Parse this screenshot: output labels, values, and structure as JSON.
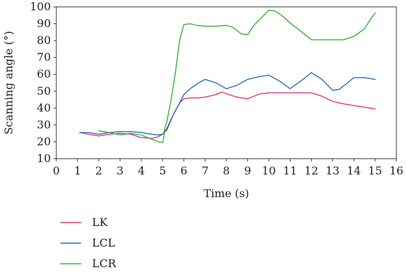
{
  "chart_data": {
    "type": "line",
    "title": "",
    "xlabel": "Time (s)",
    "ylabel": "Scanning angle (°)",
    "xlim": [
      0,
      16
    ],
    "ylim": [
      10,
      100
    ],
    "xticks": [
      0,
      1,
      2,
      3,
      4,
      5,
      6,
      7,
      8,
      9,
      10,
      11,
      12,
      13,
      14,
      15,
      16
    ],
    "yticks": [
      10,
      20,
      30,
      40,
      50,
      60,
      70,
      80,
      90,
      100
    ],
    "grid": false,
    "legend_position": "bottom-left, below plot",
    "series": [
      {
        "name": "LK",
        "color": "#e0357f",
        "x": [
          1.1,
          1.5,
          2.0,
          2.5,
          3.0,
          3.5,
          4.0,
          4.5,
          4.8,
          5.0,
          5.2,
          5.5,
          5.8,
          6.0,
          6.3,
          6.7,
          7.0,
          7.5,
          7.8,
          8.0,
          8.5,
          9.0,
          9.3,
          9.6,
          10.0,
          10.5,
          11.0,
          11.5,
          12.0,
          12.5,
          13.0,
          13.5,
          14.0,
          14.5,
          15.0
        ],
        "y": [
          25.5,
          24.5,
          23.5,
          24.5,
          25.0,
          24.5,
          22.5,
          22.0,
          23.0,
          24.5,
          28.0,
          36.0,
          43.0,
          45.5,
          46.0,
          46.0,
          46.5,
          48.0,
          49.5,
          48.5,
          46.5,
          45.5,
          47.0,
          48.5,
          49.0,
          49.0,
          49.0,
          49.0,
          49.0,
          47.0,
          44.0,
          42.5,
          41.5,
          40.5,
          39.5
        ]
      },
      {
        "name": "LCL",
        "color": "#2a6fb0",
        "x": [
          1.1,
          1.5,
          2.0,
          2.5,
          3.0,
          3.5,
          4.0,
          4.5,
          4.8,
          5.0,
          5.2,
          5.5,
          5.8,
          6.0,
          6.3,
          6.7,
          7.0,
          7.5,
          8.0,
          8.5,
          9.0,
          9.5,
          10.0,
          10.5,
          11.0,
          11.5,
          12.0,
          12.5,
          13.0,
          13.3,
          13.6,
          14.0,
          14.5,
          15.0
        ],
        "y": [
          25.5,
          25.5,
          24.5,
          25.5,
          26.0,
          26.0,
          25.5,
          24.5,
          24.0,
          24.5,
          27.0,
          36.0,
          43.0,
          48.0,
          51.5,
          55.0,
          57.0,
          55.0,
          51.5,
          53.5,
          57.0,
          58.5,
          59.5,
          56.0,
          51.5,
          56.0,
          61.0,
          57.0,
          50.5,
          51.0,
          54.0,
          58.0,
          58.0,
          57.0
        ]
      },
      {
        "name": "LCR",
        "color": "#3aae3a",
        "x": [
          2.0,
          2.5,
          3.0,
          3.5,
          4.0,
          4.5,
          4.8,
          5.0,
          5.05,
          5.1,
          5.2,
          5.4,
          5.6,
          5.8,
          6.0,
          6.3,
          6.6,
          7.0,
          7.5,
          8.0,
          8.3,
          8.7,
          9.0,
          9.3,
          9.6,
          10.0,
          10.3,
          10.6,
          11.0,
          11.5,
          12.0,
          12.5,
          13.0,
          13.5,
          14.0,
          14.5,
          14.8,
          15.0
        ],
        "y": [
          26.5,
          25.5,
          24.0,
          25.0,
          24.0,
          21.5,
          20.0,
          19.5,
          22.0,
          28.0,
          32.0,
          45.0,
          61.0,
          80.0,
          89.5,
          90.0,
          89.0,
          88.5,
          88.5,
          89.0,
          88.0,
          84.0,
          83.5,
          89.0,
          93.0,
          98.0,
          97.5,
          95.0,
          90.5,
          85.5,
          80.5,
          80.5,
          80.5,
          80.5,
          82.5,
          87.0,
          93.0,
          96.5
        ]
      }
    ]
  }
}
